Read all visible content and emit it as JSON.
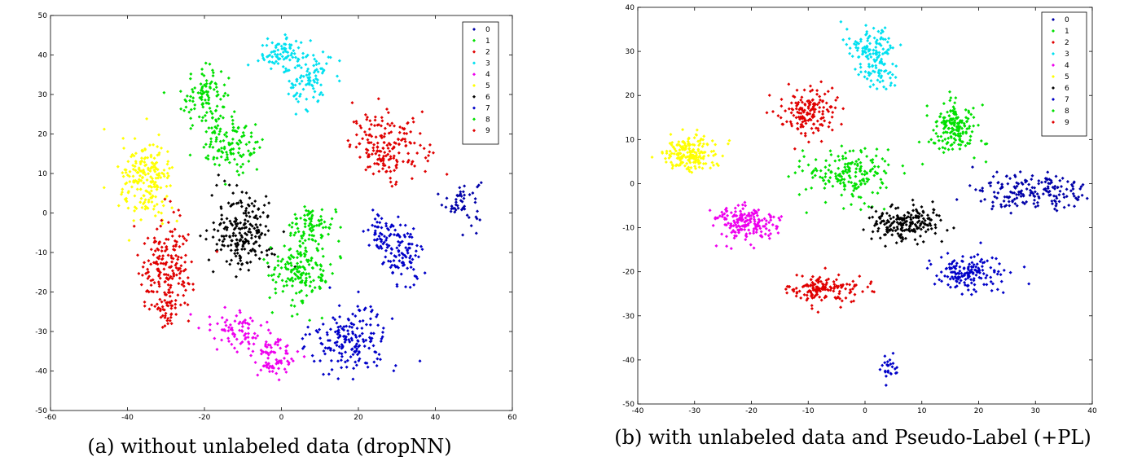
{
  "chart_data": [
    {
      "type": "scatter",
      "caption": "(a) without unlabeled data (dropNN)",
      "xlim": [
        -60,
        60
      ],
      "ylim": [
        -50,
        50
      ],
      "x_ticks": [
        -60,
        -40,
        -20,
        0,
        20,
        40,
        60
      ],
      "y_ticks": [
        -50,
        -40,
        -30,
        -20,
        -10,
        0,
        10,
        20,
        30,
        40,
        50
      ],
      "legend_position": "top-right",
      "grid": false,
      "series": [
        {
          "name": "0",
          "color": "#0000a8",
          "clusters": [
            {
              "cx": 47,
              "cy": 3,
              "sx": 2.5,
              "sy": 3,
              "n": 50
            }
          ]
        },
        {
          "name": "1",
          "color": "#00e000",
          "clusters": [
            {
              "cx": -20,
              "cy": 29,
              "sx": 3,
              "sy": 4,
              "n": 110
            }
          ]
        },
        {
          "name": "2",
          "color": "#e00000",
          "clusters": [
            {
              "cx": 28,
              "cy": 17,
              "sx": 5,
              "sy": 4,
              "n": 180
            }
          ]
        },
        {
          "name": "3",
          "color": "#00e0f0",
          "clusters": [
            {
              "cx": 0,
              "cy": 40,
              "sx": 3,
              "sy": 2,
              "n": 80
            },
            {
              "cx": 7,
              "cy": 34,
              "sx": 3,
              "sy": 4,
              "n": 90
            }
          ]
        },
        {
          "name": "4",
          "color": "#ee00ee",
          "clusters": [
            {
              "cx": -12,
              "cy": -29,
              "sx": 4,
              "sy": 2.5,
              "n": 70
            },
            {
              "cx": -2,
              "cy": -36,
              "sx": 3,
              "sy": 3,
              "n": 80
            }
          ]
        },
        {
          "name": "5",
          "color": "#ffff00",
          "clusters": [
            {
              "cx": -35,
              "cy": 8,
              "sx": 3.5,
              "sy": 5,
              "n": 200
            }
          ]
        },
        {
          "name": "6",
          "color": "#000000",
          "clusters": [
            {
              "cx": -10,
              "cy": -5,
              "sx": 4,
              "sy": 5,
              "n": 210
            }
          ]
        },
        {
          "name": "7",
          "color": "#0000c8",
          "clusters": [
            {
              "cx": 27,
              "cy": -5,
              "sx": 3,
              "sy": 3,
              "n": 70
            },
            {
              "cx": 32,
              "cy": -12,
              "sx": 2.5,
              "sy": 3,
              "n": 70
            },
            {
              "cx": 18,
              "cy": -32,
              "sx": 5,
              "sy": 4,
              "n": 180
            }
          ]
        },
        {
          "name": "8",
          "color": "#00e000",
          "clusters": [
            {
              "cx": -13,
              "cy": 17,
              "sx": 4,
              "sy": 3,
              "n": 110
            },
            {
              "cx": 8,
              "cy": -4,
              "sx": 3,
              "sy": 3,
              "n": 90
            },
            {
              "cx": 5,
              "cy": -15,
              "sx": 4,
              "sy": 4,
              "n": 160
            }
          ]
        },
        {
          "name": "9",
          "color": "#e00000",
          "clusters": [
            {
              "cx": -30,
              "cy": -14,
              "sx": 3.5,
              "sy": 6,
              "n": 190
            },
            {
              "cx": -30,
              "cy": -25,
              "sx": 1.5,
              "sy": 1.5,
              "n": 30
            }
          ]
        }
      ]
    },
    {
      "type": "scatter",
      "caption": "(b) with unlabeled data and Pseudo-Label (+PL)",
      "xlim": [
        -40,
        40
      ],
      "ylim": [
        -50,
        40
      ],
      "x_ticks": [
        -40,
        -30,
        -20,
        -10,
        0,
        10,
        20,
        30,
        40
      ],
      "y_ticks": [
        -50,
        -40,
        -30,
        -20,
        -10,
        0,
        10,
        20,
        30,
        40
      ],
      "legend_position": "top-right",
      "grid": false,
      "series": [
        {
          "name": "0",
          "color": "#0000a8",
          "clusters": [
            {
              "cx": 30,
              "cy": -2,
              "sx": 5,
              "sy": 2,
              "n": 180
            }
          ]
        },
        {
          "name": "1",
          "color": "#00e000",
          "clusters": [
            {
              "cx": -3,
              "cy": 2,
              "sx": 4,
              "sy": 3,
              "n": 180
            }
          ]
        },
        {
          "name": "2",
          "color": "#e00000",
          "clusters": [
            {
              "cx": -10,
              "cy": 16,
              "sx": 2.5,
              "sy": 3,
              "n": 160
            }
          ]
        },
        {
          "name": "3",
          "color": "#00e0f0",
          "clusters": [
            {
              "cx": 1,
              "cy": 31,
              "sx": 2,
              "sy": 2,
              "n": 100
            },
            {
              "cx": 2,
              "cy": 25,
              "sx": 2,
              "sy": 2,
              "n": 60
            }
          ]
        },
        {
          "name": "4",
          "color": "#ee00ee",
          "clusters": [
            {
              "cx": -21,
              "cy": -9,
              "sx": 3,
              "sy": 2,
              "n": 180
            }
          ]
        },
        {
          "name": "5",
          "color": "#ffff00",
          "clusters": [
            {
              "cx": -31,
              "cy": 7,
              "sx": 2.5,
              "sy": 2,
              "n": 190
            }
          ]
        },
        {
          "name": "6",
          "color": "#000000",
          "clusters": [
            {
              "cx": 7,
              "cy": -9,
              "sx": 3.5,
              "sy": 2,
              "n": 190
            }
          ]
        },
        {
          "name": "7",
          "color": "#0000c8",
          "clusters": [
            {
              "cx": 18,
              "cy": -20,
              "sx": 3,
              "sy": 2,
              "n": 150
            },
            {
              "cx": 4,
              "cy": -42,
              "sx": 1,
              "sy": 1.5,
              "n": 25
            }
          ]
        },
        {
          "name": "8",
          "color": "#00e000",
          "clusters": [
            {
              "cx": 16,
              "cy": 13,
              "sx": 2,
              "sy": 3,
              "n": 170
            }
          ]
        },
        {
          "name": "9",
          "color": "#e00000",
          "clusters": [
            {
              "cx": -7,
              "cy": -24,
              "sx": 3,
              "sy": 1.5,
              "n": 150
            }
          ]
        }
      ]
    }
  ]
}
